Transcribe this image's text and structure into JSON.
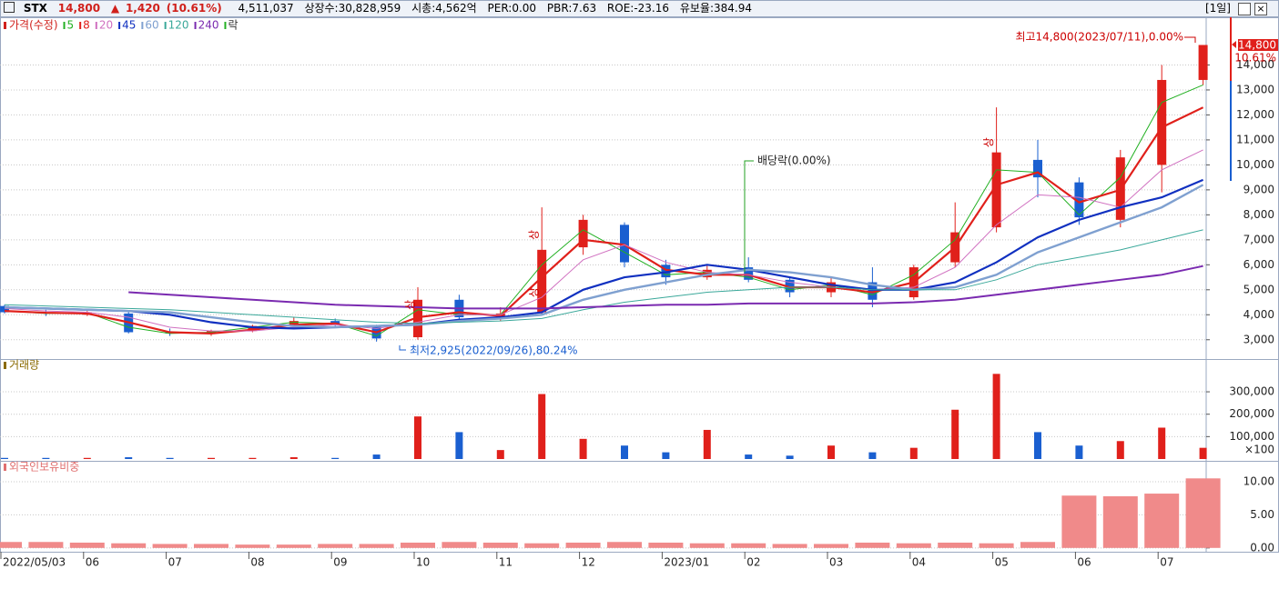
{
  "header": {
    "symbol": "STX",
    "price": "14,800",
    "arrow": "▲",
    "change": "1,420",
    "change_rate": "(10.61%)",
    "volume": "4,511,037",
    "listed": "상장수:30,828,959",
    "market_cap": "시총:4,562억",
    "per": "PER:0.00",
    "pbr": "PBR:7.63",
    "roe": "ROE:-23.16",
    "reserve": "유보율:384.94",
    "period": "[1일]"
  },
  "chart_data": [
    {
      "type": "candlestick",
      "title": "가격(수정)",
      "legend_extra": "락",
      "categories": [
        "2022/05/03",
        null,
        "06",
        null,
        "07",
        null,
        "08",
        null,
        "09",
        null,
        "10",
        null,
        "11",
        null,
        "12",
        null,
        "2023/01",
        null,
        "02",
        null,
        "03",
        null,
        "04",
        null,
        "05",
        null,
        "06",
        null,
        "07",
        null
      ],
      "open": [
        4350,
        4100,
        4000,
        4050,
        3300,
        3250,
        3350,
        3550,
        3750,
        3550,
        3100,
        4600,
        3900,
        4100,
        6700,
        7600,
        6000,
        5500,
        5900,
        5400,
        4900,
        5300,
        4700,
        6100,
        7500,
        10200,
        9300,
        7800,
        10000,
        13400
      ],
      "high": [
        4400,
        4200,
        4150,
        4100,
        3450,
        3400,
        3600,
        3900,
        3850,
        3600,
        5100,
        4800,
        4300,
        8300,
        8000,
        7700,
        6200,
        6000,
        6300,
        5500,
        5500,
        5900,
        6000,
        8500,
        12300,
        11000,
        9500,
        10600,
        14000,
        14800
      ],
      "low": [
        4050,
        3950,
        3950,
        3250,
        3150,
        3150,
        3300,
        3500,
        3550,
        2925,
        3000,
        3800,
        3750,
        4000,
        6400,
        5900,
        5200,
        5400,
        5300,
        4700,
        4700,
        4300,
        4600,
        5900,
        7300,
        8700,
        7600,
        7500,
        8900,
        13200
      ],
      "close": [
        4100,
        4050,
        4100,
        3300,
        3250,
        3350,
        3550,
        3750,
        3600,
        3050,
        4600,
        3900,
        4050,
        6600,
        7800,
        6100,
        5500,
        5800,
        5400,
        4900,
        5300,
        4600,
        5900,
        7300,
        10500,
        9500,
        7900,
        10300,
        13400,
        14800
      ],
      "up_color": "#e0201b",
      "down_color": "#1a5fd0",
      "series": [
        {
          "name": "5",
          "color": "#22b022",
          "values": [
            4150,
            4050,
            4080,
            3500,
            3250,
            3300,
            3500,
            3700,
            3650,
            3150,
            4200,
            4000,
            4000,
            6000,
            7400,
            6500,
            5600,
            5700,
            5500,
            5000,
            5200,
            4800,
            5600,
            7000,
            9800,
            9700,
            8000,
            9500,
            12500,
            13200
          ]
        },
        {
          "name": "8",
          "color": "#e0201b",
          "values": [
            4150,
            4080,
            4050,
            3700,
            3300,
            3250,
            3400,
            3600,
            3650,
            3300,
            3900,
            4100,
            3950,
            5500,
            7000,
            6800,
            5800,
            5600,
            5600,
            5100,
            5100,
            4900,
            5300,
            6700,
            9200,
            9700,
            8500,
            9000,
            11500,
            12300
          ]
        },
        {
          "name": "20",
          "color": "#d070c0",
          "values": [
            4250,
            4150,
            4100,
            3900,
            3500,
            3350,
            3350,
            3500,
            3600,
            3450,
            3700,
            4000,
            4000,
            4700,
            6200,
            6800,
            6100,
            5700,
            5600,
            5300,
            5100,
            5000,
            5100,
            5900,
            7600,
            8800,
            8700,
            8300,
            9800,
            10600
          ]
        },
        {
          "name": "45",
          "color": "#1030c0",
          "values": [
            4300,
            4250,
            4200,
            4150,
            4000,
            3700,
            3500,
            3450,
            3500,
            3550,
            3600,
            3800,
            3900,
            4100,
            5000,
            5500,
            5700,
            6000,
            5800,
            5500,
            5200,
            5000,
            5000,
            5300,
            6100,
            7100,
            7800,
            8300,
            8700,
            9400
          ]
        },
        {
          "name": "60",
          "color": "#7fa0d0",
          "values": [
            4300,
            4250,
            4200,
            4150,
            4100,
            3900,
            3700,
            3550,
            3500,
            3550,
            3600,
            3750,
            3850,
            4000,
            4600,
            5000,
            5300,
            5600,
            5800,
            5700,
            5500,
            5200,
            5000,
            5100,
            5600,
            6500,
            7100,
            7700,
            8300,
            9200
          ]
        },
        {
          "name": "120",
          "color": "#3aa89a",
          "values": [
            4400,
            4350,
            4300,
            4250,
            4200,
            4100,
            4000,
            3900,
            3800,
            3700,
            3650,
            3700,
            3750,
            3850,
            4200,
            4500,
            4700,
            4900,
            5000,
            5100,
            5100,
            5000,
            5000,
            5000,
            5400,
            6000,
            6300,
            6600,
            7000,
            7400
          ]
        },
        {
          "name": "240",
          "color": "#7a2ab0",
          "values": [
            null,
            null,
            null,
            4900,
            4800,
            4700,
            4600,
            4500,
            4400,
            4350,
            4300,
            4250,
            4250,
            4250,
            4300,
            4350,
            4400,
            4400,
            4450,
            4450,
            4450,
            4450,
            4500,
            4600,
            4800,
            5000,
            5200,
            5400,
            5600,
            5950
          ]
        }
      ],
      "ylim": [
        2300,
        15800
      ],
      "yticks": [
        {
          "value": 3000,
          "label": "3,000"
        },
        {
          "value": 4000,
          "label": "4,000"
        },
        {
          "value": 5000,
          "label": "5,000"
        },
        {
          "value": 6000,
          "label": "6,000"
        },
        {
          "value": 7000,
          "label": "7,000"
        },
        {
          "value": 8000,
          "label": "8,000"
        },
        {
          "value": 9000,
          "label": "9,000"
        },
        {
          "value": 10000,
          "label": "10,000"
        },
        {
          "value": 11000,
          "label": "11,000"
        },
        {
          "value": 12000,
          "label": "12,000"
        },
        {
          "value": 13000,
          "label": "13,000"
        },
        {
          "value": 14000,
          "label": "14,000"
        }
      ],
      "grid": true,
      "price_tag": {
        "price": "14,800",
        "rate": "10.61%"
      },
      "annotations": [
        "최고14,800(2023/07/11),0.00%",
        "최저2,925(2022/09/26),80.24%",
        "배당락(0.00%)"
      ],
      "markers": [
        {
          "label": "상",
          "index": 10,
          "value": 4400
        },
        {
          "label": "상",
          "index": 13,
          "value": 4900
        },
        {
          "label": "상",
          "index": 13,
          "value": 7200
        },
        {
          "label": "상",
          "index": 24,
          "value": 10900
        }
      ]
    },
    {
      "type": "bar",
      "title": "거래량",
      "unit": "×100",
      "values": [
        5000,
        5000,
        5000,
        8000,
        5000,
        5000,
        5000,
        8000,
        5000,
        20000,
        190000,
        120000,
        40000,
        290000,
        90000,
        60000,
        30000,
        130000,
        20000,
        15000,
        60000,
        30000,
        50000,
        220000,
        380000,
        120000,
        60000,
        80000,
        140000,
        50000
      ],
      "ylim": [
        0,
        430000
      ],
      "yticks": [
        {
          "value": 100000,
          "label": "100,000"
        },
        {
          "value": 200000,
          "label": "200,000"
        },
        {
          "value": 300000,
          "label": "300,000"
        }
      ],
      "grid": true
    },
    {
      "type": "bar",
      "title": "외국인보유비중",
      "color": "#f08a8a",
      "values": [
        0.9,
        0.9,
        0.8,
        0.7,
        0.6,
        0.6,
        0.5,
        0.5,
        0.6,
        0.6,
        0.8,
        0.9,
        0.8,
        0.7,
        0.8,
        0.9,
        0.8,
        0.7,
        0.7,
        0.6,
        0.6,
        0.8,
        0.7,
        0.8,
        0.7,
        0.9,
        7.9,
        7.8,
        8.2,
        10.5
      ],
      "ylim": [
        -0.3,
        12.6
      ],
      "yticks": [
        {
          "value": 0,
          "label": "0.00"
        },
        {
          "value": 5,
          "label": "5.00"
        },
        {
          "value": 10,
          "label": "10.00"
        }
      ],
      "grid": true
    }
  ]
}
